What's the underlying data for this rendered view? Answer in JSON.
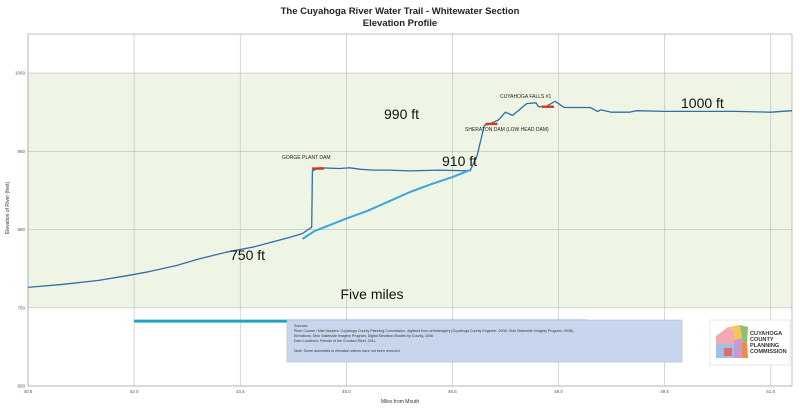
{
  "chart_data": {
    "type": "line",
    "title": "The Cuyahoga River Water Trail - Whitewater Section",
    "subtitle": "Elevation Profile",
    "xlabel": "Miles from Mouth",
    "ylabel": "Elevation of River (feet)",
    "xlim": [
      40.5,
      51.3
    ],
    "ylim": [
      650,
      1100
    ],
    "grid": true,
    "xticks": [
      {
        "value": 40.5,
        "label": "40.5"
      },
      {
        "value": 42.0,
        "label": "42.0"
      },
      {
        "value": 43.5,
        "label": "43.5"
      },
      {
        "value": 45.0,
        "label": "45.0"
      },
      {
        "value": 46.5,
        "label": "46.5"
      },
      {
        "value": 48.0,
        "label": "48.0"
      },
      {
        "value": 49.5,
        "label": "49.5"
      },
      {
        "value": 51.0,
        "label": "51.0"
      }
    ],
    "yticks": [
      {
        "value": 650,
        "label": "650"
      },
      {
        "value": 750,
        "label": "750"
      },
      {
        "value": 850,
        "label": "850"
      },
      {
        "value": 950,
        "label": "950"
      },
      {
        "value": 1050,
        "label": "1050"
      }
    ],
    "series": [
      {
        "color": "#2e6fa6",
        "x": [
          40.5,
          41.0,
          41.5,
          41.9,
          42.2,
          42.6,
          42.9,
          43.3,
          43.7,
          44.2,
          44.38,
          44.51,
          44.52,
          44.57,
          44.62,
          44.9,
          45.05,
          45.2,
          45.4,
          45.6,
          45.9,
          46.3,
          46.75,
          46.85,
          46.95,
          47.05,
          47.15,
          47.25,
          47.35,
          47.55,
          47.68,
          47.72,
          47.82,
          47.95,
          48.08,
          48.28,
          48.45,
          48.55,
          48.6,
          48.75,
          49.0,
          49.1,
          49.5,
          50.0,
          50.5,
          51.0,
          51.3
        ],
        "y": [
          776,
          780,
          785,
          791,
          796,
          804,
          812,
          821,
          828,
          840,
          845,
          853,
          925,
          927,
          929,
          928,
          929,
          927,
          926,
          926,
          925,
          926,
          925,
          945,
          983,
          986,
          990,
          1000,
          996,
          1011,
          1012,
          1007,
          1007,
          1014,
          1006,
          1006,
          1006,
          1001,
          1003,
          1000,
          1000,
          1002,
          1001,
          1001,
          1001,
          1000,
          1002
        ]
      },
      {
        "color": "#3aa5de",
        "x": [
          44.38,
          44.55,
          44.75,
          45.0,
          45.3,
          45.6,
          45.9,
          46.2,
          46.5,
          46.75
        ],
        "y": [
          838,
          848,
          855,
          864,
          874,
          886,
          898,
          908,
          917,
          926
        ]
      }
    ],
    "annotations": [
      {
        "text": "GORGE PLANT DAM"
      },
      {
        "text": "SHERATON DAM (LOW HEAD DAM)"
      },
      {
        "text": "CUYAHOGA FALLS #1"
      },
      {
        "text": "1000 ft"
      },
      {
        "text": "990 ft"
      },
      {
        "text": "910 ft"
      },
      {
        "text": "750 ft"
      },
      {
        "text": "Five miles"
      }
    ],
    "dam_markers": [
      {
        "x": 44.6,
        "y": 928
      },
      {
        "x": 47.05,
        "y": 985
      },
      {
        "x": 47.85,
        "y": 1007
      }
    ],
    "scale_bar": {
      "label": "Five miles",
      "x_start": 42.0,
      "x_end": 48.4,
      "y": 733
    },
    "sources_box": {
      "lines": [
        "Sources:",
        "River Course / Mile Markers: Cuyahoga County Planning Commission, digitized from orthoimagery (Cuyahoga County Engineer, 2008;  Ohio Statewide Imagery Program, 2006).",
        "Elevations: Ohio Statewide Imagery Program, Digital Elevation Models by County, 2006",
        "Dam Locations: Friends of the Crooked River, 2011.",
        "",
        "Note: Some anomalies in elevation values have not been removed."
      ]
    },
    "logo": {
      "lines": [
        "CUYAHOGA",
        "COUNTY",
        "PLANNING",
        "COMMISSION"
      ]
    },
    "colors": {
      "plot_bg": "#eef5e4",
      "grid": "#bcbcbc",
      "main_line": "#2e6fa6",
      "secondary_line": "#3aa5de",
      "dam_marker": "#d9361f",
      "scale_bar": "#1fa1c5",
      "source_box": "#c7d6ec"
    }
  }
}
